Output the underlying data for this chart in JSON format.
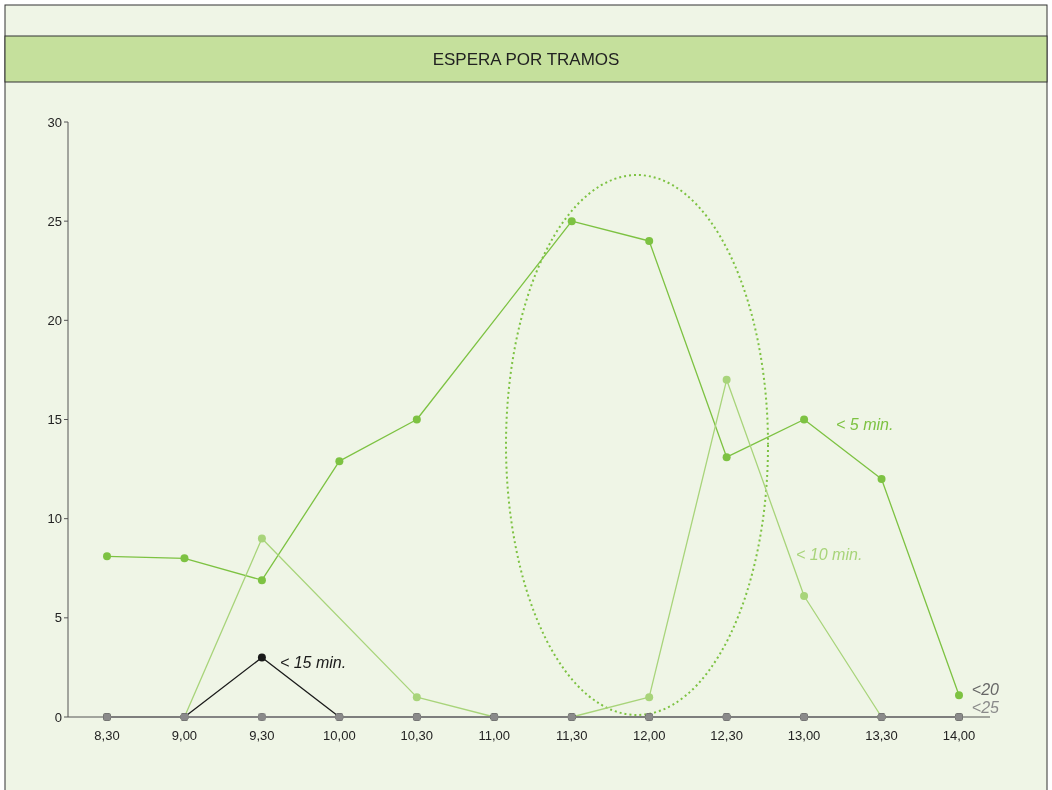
{
  "chart_data": {
    "type": "line",
    "title": "ESPERA POR TRAMOS",
    "categories": [
      "8,30",
      "9,00",
      "9,30",
      "10,00",
      "10,30",
      "11,00",
      "11,30",
      "12,00",
      "12,30",
      "13,00",
      "13,30",
      "14,00"
    ],
    "series": [
      {
        "name": "< 5 min.",
        "color": "#7dc242",
        "marker": "circle",
        "values": [
          8.1,
          8.0,
          6.9,
          12.9,
          15.0,
          null,
          25.0,
          24.0,
          13.1,
          15.0,
          12.0,
          1.1
        ]
      },
      {
        "name": "< 10 min.",
        "color": "#a8d47a",
        "marker": "circle",
        "values": [
          0,
          0,
          9.0,
          null,
          1.0,
          0,
          0,
          1.0,
          17.0,
          6.1,
          0,
          0
        ]
      },
      {
        "name": "< 15 min.",
        "color": "#1a1a1a",
        "marker": "circle",
        "values": [
          0,
          0,
          3.0,
          0,
          0,
          0,
          0,
          0,
          0,
          0,
          0,
          0
        ]
      },
      {
        "name": "<20",
        "color": "#666666",
        "marker": "circle",
        "values": [
          0,
          0,
          0,
          0,
          0,
          0,
          0,
          0,
          0,
          0,
          0,
          0
        ]
      },
      {
        "name": "<25",
        "color": "#8a8a8a",
        "marker": "square",
        "values": [
          0,
          0,
          0,
          0,
          0,
          0,
          0,
          0,
          0,
          0,
          0,
          0
        ]
      }
    ],
    "ylim": [
      0,
      30
    ],
    "yticks": [
      0,
      5,
      10,
      15,
      20,
      25,
      30
    ],
    "grid": false,
    "legend": false
  }
}
